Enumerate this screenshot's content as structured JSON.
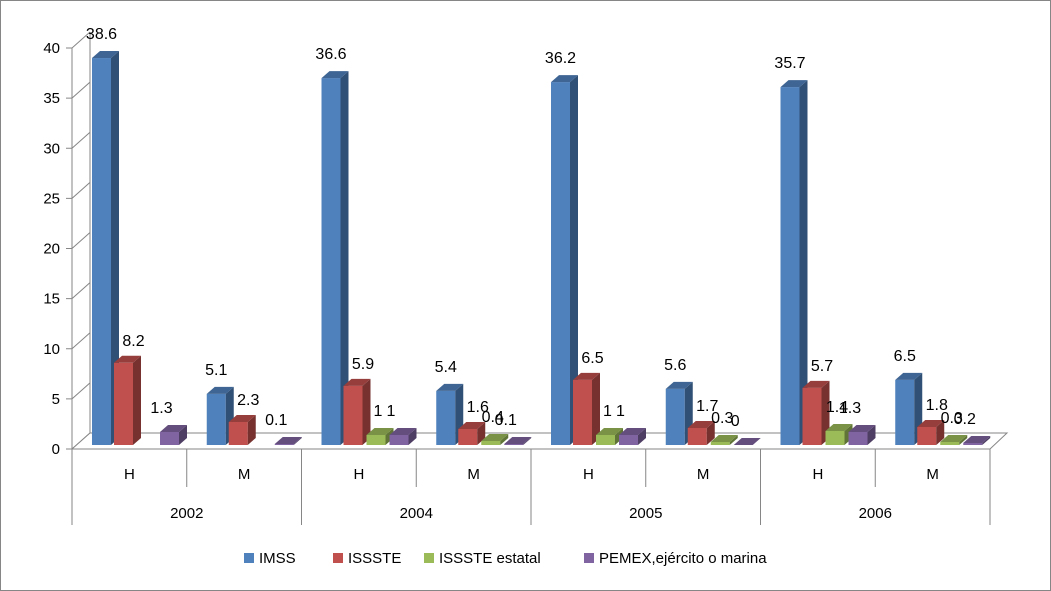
{
  "chart_data": {
    "type": "bar",
    "variant": "3d-clustered-column",
    "title": "",
    "xlabel": "",
    "ylabel": "",
    "ylim": [
      0,
      40
    ],
    "y_ticks": [
      0,
      5,
      10,
      15,
      20,
      25,
      30,
      35,
      40
    ],
    "grid": false,
    "legend_position": "bottom",
    "groups": [
      {
        "label": "2002",
        "categories": [
          "H",
          "M"
        ]
      },
      {
        "label": "2004",
        "categories": [
          "H",
          "M"
        ]
      },
      {
        "label": "2005",
        "categories": [
          "H",
          "M"
        ]
      },
      {
        "label": "2006",
        "categories": [
          "H",
          "M"
        ]
      }
    ],
    "series": [
      {
        "name": "IMSS",
        "color": "#4F81BD",
        "values": [
          38.6,
          5.1,
          36.6,
          5.4,
          36.2,
          5.6,
          35.7,
          6.5
        ]
      },
      {
        "name": "ISSSTE",
        "color": "#C0504D",
        "values": [
          8.2,
          2.3,
          5.9,
          1.6,
          6.5,
          1.7,
          5.7,
          1.8
        ]
      },
      {
        "name": "ISSSTE estatal",
        "color": "#9BBB59",
        "values": [
          null,
          null,
          1,
          0.4,
          1,
          0.3,
          1.4,
          0.3
        ]
      },
      {
        "name": "PEMEX,ejército o marina",
        "color": "#8064A2",
        "values": [
          1.3,
          0.1,
          1,
          0.1,
          1,
          0,
          1.3,
          0.2
        ]
      }
    ]
  }
}
